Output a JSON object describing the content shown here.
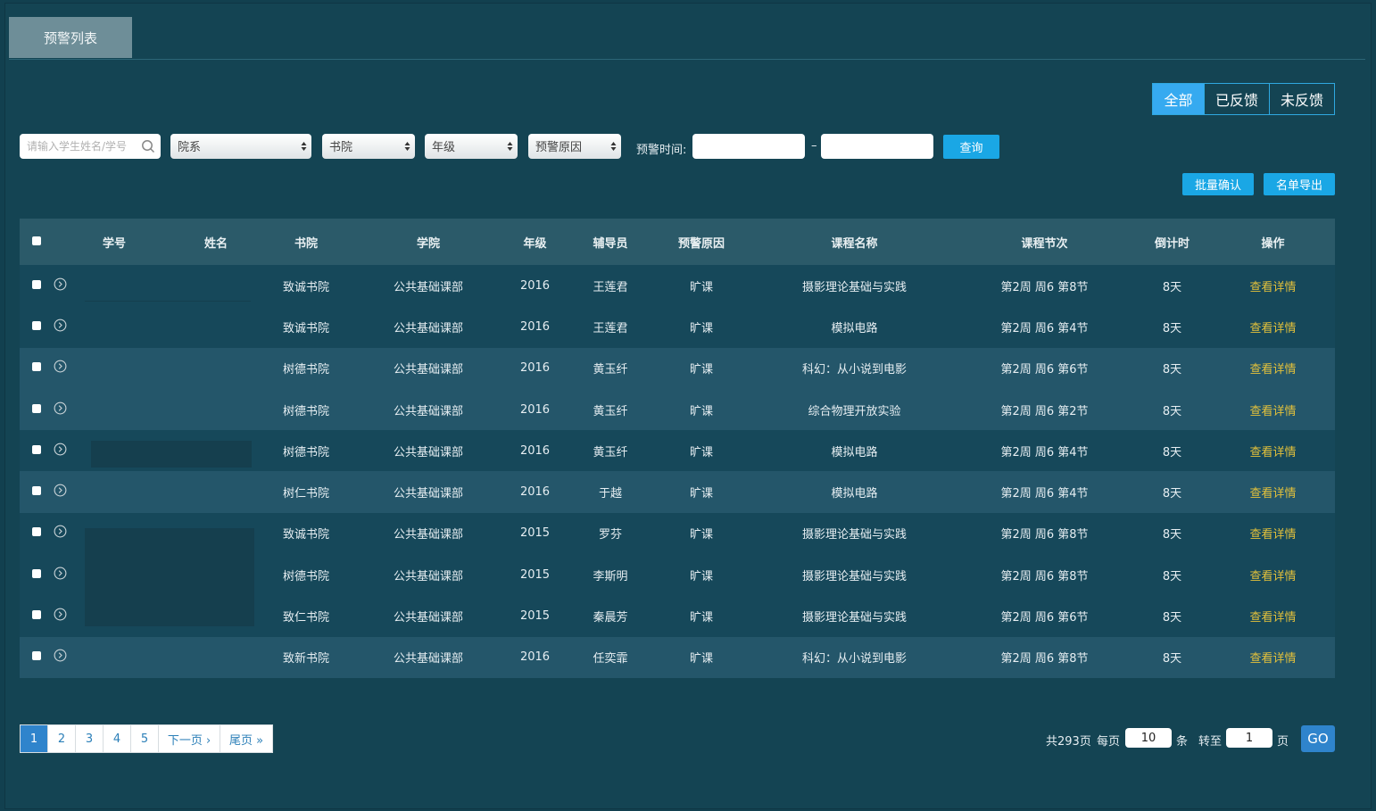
{
  "tab": {
    "label": "预警列表"
  },
  "filter_tabs": [
    "全部",
    "已反馈",
    "未反馈"
  ],
  "search": {
    "placeholder": "请输入学生姓名/学号"
  },
  "selects": {
    "department": "院系",
    "college": "书院",
    "grade": "年级",
    "reason": "预警原因"
  },
  "time_label": "预警时间:",
  "time_sep": "–",
  "query_label": "查询",
  "batch_confirm_label": "批量确认",
  "export_label": "名单导出",
  "table": {
    "headers": [
      "学号",
      "姓名",
      "书院",
      "学院",
      "年级",
      "辅导员",
      "预警原因",
      "课程名称",
      "课程节次",
      "倒计时",
      "操作"
    ],
    "rows": [
      {
        "college": "致诚书院",
        "school": "公共基础课部",
        "grade": "2016",
        "counselor": "王莲君",
        "reason": "旷课",
        "course": "摄影理论基础与实践",
        "section": "第2周 周6 第8节",
        "countdown": "8天",
        "action": "查看详情"
      },
      {
        "college": "致诚书院",
        "school": "公共基础课部",
        "grade": "2016",
        "counselor": "王莲君",
        "reason": "旷课",
        "course": "模拟电路",
        "section": "第2周 周6 第4节",
        "countdown": "8天",
        "action": "查看详情"
      },
      {
        "college": "树德书院",
        "school": "公共基础课部",
        "grade": "2016",
        "counselor": "黄玉纤",
        "reason": "旷课",
        "course": "科幻：从小说到电影",
        "section": "第2周 周6 第6节",
        "countdown": "8天",
        "action": "查看详情"
      },
      {
        "college": "树德书院",
        "school": "公共基础课部",
        "grade": "2016",
        "counselor": "黄玉纤",
        "reason": "旷课",
        "course": "综合物理开放实验",
        "section": "第2周 周6 第2节",
        "countdown": "8天",
        "action": "查看详情"
      },
      {
        "college": "树德书院",
        "school": "公共基础课部",
        "grade": "2016",
        "counselor": "黄玉纤",
        "reason": "旷课",
        "course": "模拟电路",
        "section": "第2周 周6 第4节",
        "countdown": "8天",
        "action": "查看详情"
      },
      {
        "college": "树仁书院",
        "school": "公共基础课部",
        "grade": "2016",
        "counselor": "于越",
        "reason": "旷课",
        "course": "模拟电路",
        "section": "第2周 周6 第4节",
        "countdown": "8天",
        "action": "查看详情"
      },
      {
        "college": "致诚书院",
        "school": "公共基础课部",
        "grade": "2015",
        "counselor": "罗芬",
        "reason": "旷课",
        "course": "摄影理论基础与实践",
        "section": "第2周 周6 第8节",
        "countdown": "8天",
        "action": "查看详情"
      },
      {
        "college": "树德书院",
        "school": "公共基础课部",
        "grade": "2015",
        "counselor": "李斯明",
        "reason": "旷课",
        "course": "摄影理论基础与实践",
        "section": "第2周 周6 第8节",
        "countdown": "8天",
        "action": "查看详情"
      },
      {
        "college": "致仁书院",
        "school": "公共基础课部",
        "grade": "2015",
        "counselor": "秦晨芳",
        "reason": "旷课",
        "course": "摄影理论基础与实践",
        "section": "第2周 周6 第6节",
        "countdown": "8天",
        "action": "查看详情"
      },
      {
        "college": "致新书院",
        "school": "公共基础课部",
        "grade": "2016",
        "counselor": "任奕霏",
        "reason": "旷课",
        "course": "科幻：从小说到电影",
        "section": "第2周 周6 第8节",
        "countdown": "8天",
        "action": "查看详情"
      }
    ]
  },
  "pagination": {
    "pages": [
      "1",
      "2",
      "3",
      "4",
      "5"
    ],
    "next": "下一页 ›",
    "last": "尾页 »",
    "total": "共293页",
    "per_page_label": "每页",
    "per_page": "10",
    "per_page_unit": "条",
    "goto_label": "转至",
    "goto_page": "1",
    "goto_unit": "页",
    "go": "GO"
  }
}
